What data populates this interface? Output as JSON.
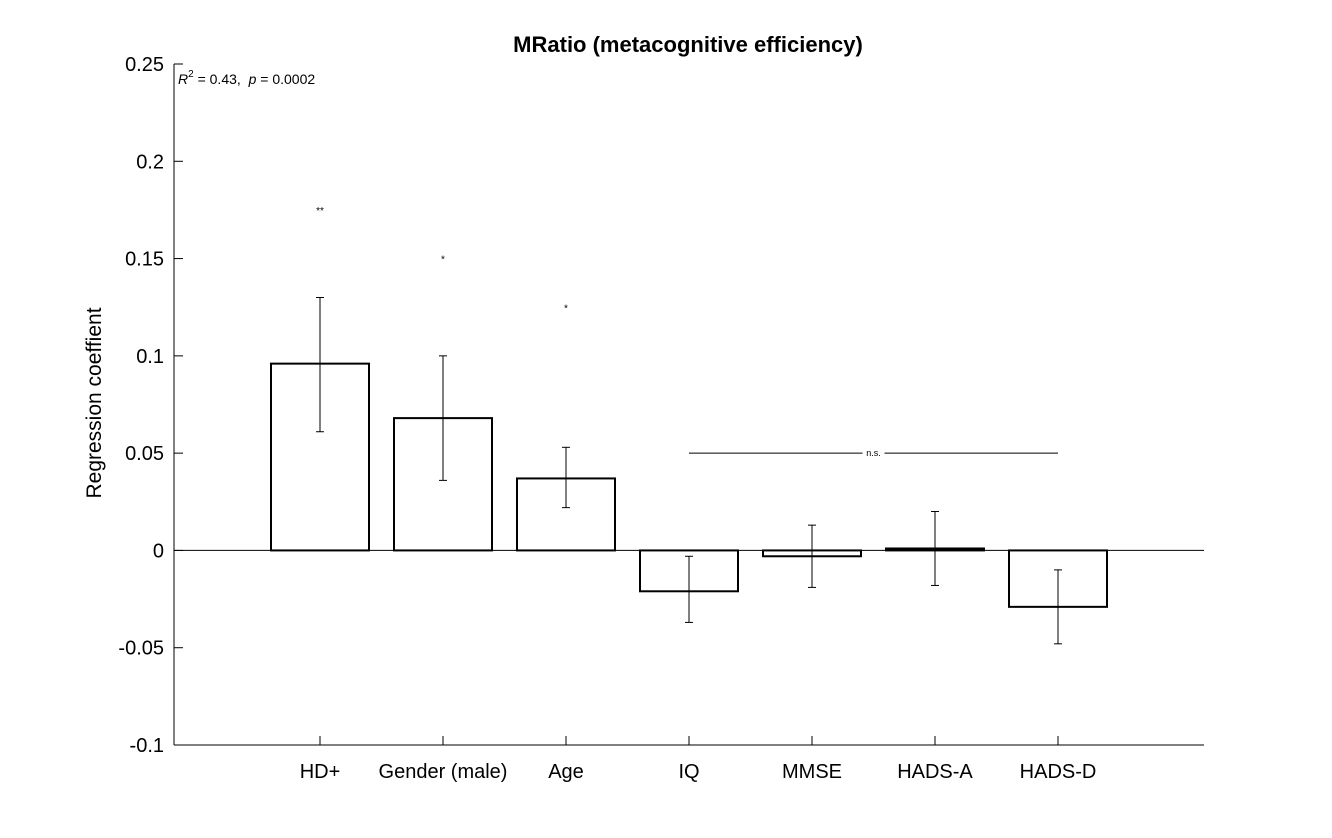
{
  "chart_data": {
    "type": "bar",
    "title": "MRatio (metacognitive efficiency)",
    "xlabel": "",
    "ylabel": "Regression coeffient",
    "ylim": [
      -0.1,
      0.25
    ],
    "yticks": [
      -0.1,
      -0.05,
      0,
      0.05,
      0.1,
      0.15,
      0.2,
      0.25
    ],
    "ytick_labels": [
      "-0.1",
      "-0.05",
      "0",
      "0.05",
      "0.1",
      "0.15",
      "0.2",
      "0.25"
    ],
    "categories": [
      "HD+",
      "Gender (male)",
      "Age",
      "IQ",
      "MMSE",
      "HADS-A",
      "HADS-D"
    ],
    "values": [
      0.096,
      0.068,
      0.037,
      -0.021,
      -0.003,
      0.001,
      -0.029
    ],
    "error_low": [
      0.061,
      0.036,
      0.022,
      -0.037,
      -0.019,
      -0.018,
      -0.048
    ],
    "error_high": [
      0.13,
      0.1,
      0.053,
      -0.003,
      0.013,
      0.02,
      -0.01
    ],
    "significance": [
      {
        "category": "HD+",
        "label": "**",
        "y": 0.176
      },
      {
        "category": "Gender (male)",
        "label": "*",
        "y": 0.151
      },
      {
        "category": "Age",
        "label": "*",
        "y": 0.126
      }
    ],
    "ns_bracket": {
      "from": "IQ",
      "to": "HADS-D",
      "y": 0.05,
      "label": "n.s."
    },
    "stats": {
      "r2_symbol": "R",
      "r2_sup": "2",
      "r2_text": " = 0.43,  ",
      "p_symbol": "p",
      "p_text": " = 0.0002"
    },
    "colors": {
      "bar_fill": "#ffffff",
      "bar_edge": "#000000",
      "axis": "#000000"
    },
    "grid": false
  }
}
